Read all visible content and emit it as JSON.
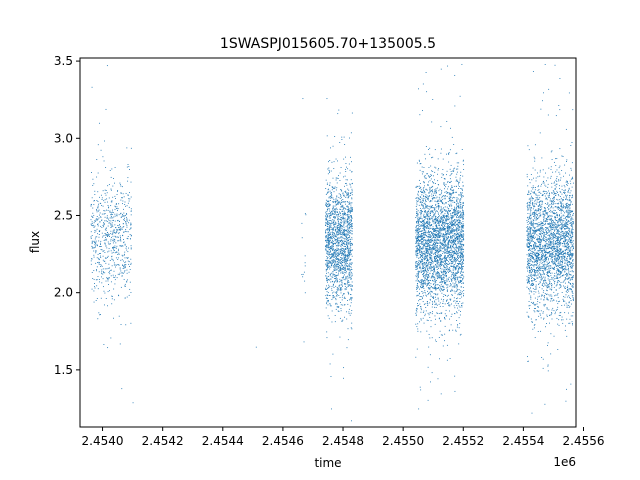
{
  "chart_data": {
    "type": "scatter",
    "title": "1SWASPJ015605.70+135005.5",
    "xlabel": "time",
    "ylabel": "flux",
    "x_offset_label": "1e6",
    "xlim": [
      2453925,
      2455575
    ],
    "ylim": [
      1.13,
      3.52
    ],
    "x_ticks": [
      2.454,
      2.4542,
      2.4544,
      2.4546,
      2.4548,
      2.455,
      2.4552,
      2.4554,
      2.4556
    ],
    "x_tick_labels": [
      "2.4540",
      "2.4542",
      "2.4544",
      "2.4546",
      "2.4548",
      "2.4550",
      "2.4552",
      "2.4554",
      "2.4556"
    ],
    "y_ticks": [
      1.5,
      2.0,
      2.5,
      3.0,
      3.5
    ],
    "y_tick_labels": [
      "1.5",
      "2.0",
      "2.5",
      "3.0",
      "3.5"
    ],
    "grid": false,
    "marker_color": "#1f77b4",
    "clusters": [
      {
        "x_start": 2453960,
        "x_end": 2454095,
        "count": 700,
        "y_center": 2.35,
        "y_spread": 0.19
      },
      {
        "x_start": 2454660,
        "x_end": 2454675,
        "count": 14,
        "y_center": 2.35,
        "y_spread": 0.25
      },
      {
        "x_start": 2454740,
        "x_end": 2454830,
        "count": 1600,
        "y_center": 2.33,
        "y_spread": 0.2
      },
      {
        "x_start": 2455040,
        "x_end": 2455200,
        "count": 3200,
        "y_center": 2.32,
        "y_spread": 0.22
      },
      {
        "x_start": 2455410,
        "x_end": 2455565,
        "count": 2600,
        "y_center": 2.32,
        "y_spread": 0.21
      }
    ],
    "isolated_points": [
      {
        "x": 2454510,
        "y": 1.65
      },
      {
        "x": 2454665,
        "y": 3.26
      },
      {
        "x": 2454745,
        "y": 3.26
      },
      {
        "x": 2454010,
        "y": 3.19
      },
      {
        "x": 2455170,
        "y": 3.41
      },
      {
        "x": 2455520,
        "y": 3.39
      },
      {
        "x": 2455050,
        "y": 1.25
      },
      {
        "x": 2455470,
        "y": 1.28
      },
      {
        "x": 2455540,
        "y": 1.3
      },
      {
        "x": 2454100,
        "y": 1.29
      },
      {
        "x": 2454760,
        "y": 1.25
      }
    ]
  }
}
